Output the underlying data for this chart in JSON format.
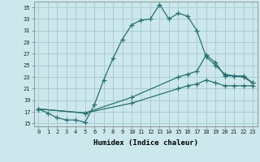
{
  "title": "",
  "xlabel": "Humidex (Indice chaleur)",
  "bg_color": "#cce8ec",
  "grid_color": "#aacdd4",
  "line_color": "#2a7070",
  "xlim": [
    -0.5,
    23.5
  ],
  "ylim": [
    14.5,
    36.0
  ],
  "yticks": [
    15,
    17,
    19,
    21,
    23,
    25,
    27,
    29,
    31,
    33,
    35
  ],
  "xticks": [
    0,
    1,
    2,
    3,
    4,
    5,
    6,
    7,
    8,
    9,
    10,
    11,
    12,
    13,
    14,
    15,
    16,
    17,
    18,
    19,
    20,
    21,
    22,
    23
  ],
  "line1_x": [
    0,
    1,
    2,
    3,
    4,
    5,
    6,
    7,
    8,
    9,
    10,
    11,
    12,
    13,
    14,
    15,
    16,
    17,
    18,
    19,
    20,
    21,
    22,
    23
  ],
  "line1_y": [
    17.5,
    16.8,
    16.0,
    15.6,
    15.6,
    15.2,
    18.2,
    22.5,
    26.2,
    29.5,
    32.0,
    32.8,
    33.0,
    35.5,
    33.0,
    34.0,
    33.5,
    31.0,
    26.5,
    25.0,
    23.5,
    23.2,
    23.2,
    22.0
  ],
  "line2_x": [
    0,
    5,
    10,
    15,
    16,
    17,
    18,
    19,
    20,
    21,
    22,
    23
  ],
  "line2_y": [
    17.5,
    16.8,
    19.5,
    23.0,
    23.5,
    24.0,
    26.8,
    25.5,
    23.2,
    23.2,
    23.0,
    22.0
  ],
  "line3_x": [
    0,
    5,
    10,
    15,
    16,
    17,
    18,
    19,
    20,
    21,
    22,
    23
  ],
  "line3_y": [
    17.5,
    16.8,
    18.5,
    21.0,
    21.5,
    21.8,
    22.5,
    22.0,
    21.5,
    21.5,
    21.5,
    21.5
  ]
}
